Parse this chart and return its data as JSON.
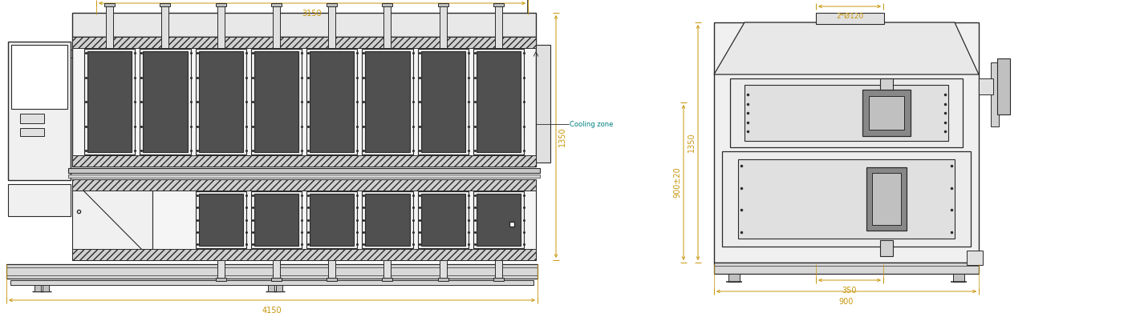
{
  "bg_color": "#ffffff",
  "lc": "#2a2a2a",
  "dc": "#c8960a",
  "cc": "#008080",
  "fig_w": 14.16,
  "fig_h": 3.91,
  "annot": {
    "3150": "3150",
    "4150": "4150",
    "1350L": "1350",
    "1350R": "1350",
    "900_20": "900±20",
    "2phi120": "2*Ø120",
    "350": "350",
    "900": "900",
    "cooling": "Cooling zone"
  }
}
